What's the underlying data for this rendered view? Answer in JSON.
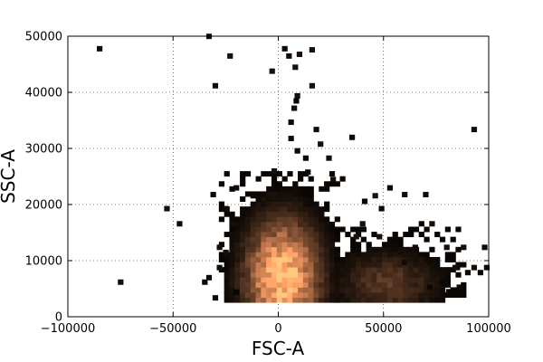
{
  "chart_data": {
    "type": "heatmap",
    "title": "",
    "xlabel": "FSC-A",
    "ylabel": "SSC-A",
    "xlim": [
      -100000,
      100000
    ],
    "ylim": [
      0,
      50000
    ],
    "grid": true,
    "colormap": "copper",
    "bin_size": {
      "x": 2500,
      "y": 900
    },
    "x_ticks": [
      {
        "value": -100000,
        "label": "−100000"
      },
      {
        "value": -50000,
        "label": "−50000"
      },
      {
        "value": 0,
        "label": "0"
      },
      {
        "value": 50000,
        "label": "50000"
      },
      {
        "value": 100000,
        "label": "100000"
      }
    ],
    "y_ticks": [
      {
        "value": 0,
        "label": "0"
      },
      {
        "value": 10000,
        "label": "10000"
      },
      {
        "value": 20000,
        "label": "20000"
      },
      {
        "value": 30000,
        "label": "30000"
      },
      {
        "value": 40000,
        "label": "40000"
      },
      {
        "value": 50000,
        "label": "50000"
      }
    ],
    "density_blobs": [
      {
        "cx": 2000,
        "cy": 7000,
        "sx": 11000,
        "sy": 6500,
        "peak": 1.0,
        "xmin": -27000,
        "xmax": 31000,
        "ymin": 3000,
        "ymax": 26000
      },
      {
        "cx": 52000,
        "cy": 6000,
        "sx": 15000,
        "sy": 3500,
        "peak": 0.28,
        "xmin": 28000,
        "xmax": 88000,
        "ymin": 3000,
        "ymax": 16000
      }
    ],
    "sparse_points": [
      [
        -85000,
        47800
      ],
      [
        -75000,
        6200
      ],
      [
        -53000,
        19300
      ],
      [
        -47000,
        16600
      ],
      [
        -33000,
        50000
      ],
      [
        -30000,
        41200
      ],
      [
        -23000,
        46500
      ],
      [
        -20000,
        23000
      ],
      [
        -12000,
        21600
      ],
      [
        -3000,
        43800
      ],
      [
        -2000,
        26000
      ],
      [
        3000,
        47800
      ],
      [
        5000,
        46500
      ],
      [
        8000,
        44500
      ],
      [
        10000,
        46800
      ],
      [
        16000,
        47600
      ],
      [
        16000,
        41200
      ],
      [
        9000,
        39400
      ],
      [
        8500,
        38500
      ],
      [
        7500,
        37200
      ],
      [
        6000,
        34700
      ],
      [
        18000,
        33400
      ],
      [
        6000,
        31800
      ],
      [
        20000,
        30800
      ],
      [
        9000,
        29600
      ],
      [
        13000,
        28300
      ],
      [
        24000,
        28300
      ],
      [
        14000,
        25800
      ],
      [
        35000,
        32000
      ],
      [
        26000,
        24500
      ],
      [
        41000,
        20600
      ],
      [
        46000,
        21600
      ],
      [
        53000,
        23000
      ],
      [
        60000,
        21800
      ],
      [
        70000,
        21800
      ],
      [
        49000,
        19300
      ],
      [
        40000,
        16600
      ],
      [
        48000,
        14300
      ],
      [
        68000,
        16600
      ],
      [
        73000,
        16600
      ],
      [
        37000,
        14300
      ],
      [
        44000,
        11500
      ],
      [
        58000,
        11500
      ],
      [
        65000,
        12400
      ],
      [
        80000,
        12400
      ],
      [
        88000,
        12400
      ],
      [
        98000,
        12400
      ],
      [
        60000,
        9700
      ],
      [
        72000,
        9700
      ],
      [
        85000,
        8800
      ],
      [
        93000,
        33400
      ],
      [
        96000,
        7900
      ],
      [
        99000,
        8800
      ],
      [
        93000,
        8800
      ],
      [
        90000,
        7900
      ],
      [
        84000,
        8800
      ],
      [
        78000,
        6100
      ],
      [
        72000,
        5300
      ],
      [
        86000,
        5300
      ],
      [
        81000,
        4500
      ],
      [
        -35000,
        6200
      ],
      [
        -33000,
        7000
      ],
      [
        -30000,
        3400
      ],
      [
        -28000,
        8800
      ],
      [
        -25000,
        11500
      ],
      [
        -28000,
        12400
      ],
      [
        -22000,
        16600
      ],
      [
        -25000,
        19300
      ],
      [
        -31000,
        21800
      ],
      [
        -20000,
        4400
      ]
    ]
  }
}
